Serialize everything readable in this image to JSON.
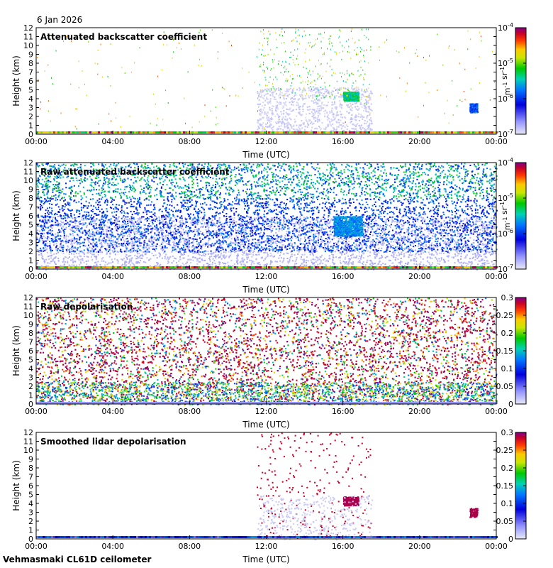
{
  "header": {
    "date": "6 Jan 2026"
  },
  "footer": {
    "site": "Vehmasmaki CL61D ceilometer"
  },
  "chart_data": [
    {
      "type": "heatmap",
      "title": "Attenuated backscatter coefficient",
      "xlabel": "Time (UTC)",
      "ylabel": "Height (km)",
      "x_ticks": [
        "00:00",
        "04:00",
        "08:00",
        "12:00",
        "16:00",
        "20:00",
        "00:00"
      ],
      "y_ticks": [
        0,
        1,
        2,
        3,
        4,
        5,
        6,
        7,
        8,
        9,
        10,
        11,
        12
      ],
      "ylim": [
        0,
        12
      ],
      "colorbar": {
        "scale": "log",
        "ticks": [
          "10-7",
          "10-6",
          "10-5",
          "10-4"
        ],
        "unit": "m-1 sr-1"
      },
      "features": [
        {
          "name": "surface layer",
          "time_range": [
            "00:00",
            "24:00"
          ],
          "height_km": [
            0,
            0.3
          ]
        },
        {
          "name": "cloud patch",
          "time_range": [
            "16:00",
            "16:50"
          ],
          "height_km": [
            3.8,
            4.8
          ]
        },
        {
          "name": "cloud patch",
          "time_range": [
            "22:40",
            "23:00"
          ],
          "height_km": [
            2.5,
            3.5
          ]
        },
        {
          "name": "thin upper returns",
          "time_range": [
            "11:30",
            "17:30"
          ],
          "height_km": [
            4,
            12
          ]
        }
      ]
    },
    {
      "type": "heatmap",
      "title": "Raw attenuated backscatter coefficient",
      "xlabel": "Time (UTC)",
      "ylabel": "Height (km)",
      "x_ticks": [
        "00:00",
        "04:00",
        "08:00",
        "12:00",
        "16:00",
        "20:00",
        "00:00"
      ],
      "y_ticks": [
        0,
        1,
        2,
        3,
        4,
        5,
        6,
        7,
        8,
        9,
        10,
        11,
        12
      ],
      "ylim": [
        0,
        12
      ],
      "colorbar": {
        "scale": "log",
        "ticks": [
          "10-7",
          "10-6",
          "10-5",
          "10-4"
        ],
        "unit": "m-1 sr-1"
      },
      "features": [
        {
          "name": "noisy background",
          "time_range": [
            "00:00",
            "24:00"
          ],
          "height_km": [
            0,
            12
          ]
        },
        {
          "name": "cloud patch",
          "time_range": [
            "15:30",
            "17:00"
          ],
          "height_km": [
            3.8,
            6
          ]
        }
      ]
    },
    {
      "type": "heatmap",
      "title": "Raw depolarisation",
      "xlabel": "Time (UTC)",
      "ylabel": "Height (km)",
      "x_ticks": [
        "00:00",
        "04:00",
        "08:00",
        "12:00",
        "16:00",
        "20:00",
        "00:00"
      ],
      "y_ticks": [
        0,
        1,
        2,
        3,
        4,
        5,
        6,
        7,
        8,
        9,
        10,
        11,
        12
      ],
      "ylim": [
        0,
        12
      ],
      "colorbar": {
        "scale": "linear",
        "ticks": [
          "0",
          "0.05",
          "0.1",
          "0.15",
          "0.2",
          "0.25",
          "0.3"
        ],
        "range": [
          0,
          0.3
        ]
      }
    },
    {
      "type": "heatmap",
      "title": "Smoothed lidar depolarisation",
      "xlabel": "Time (UTC)",
      "ylabel": "Height (km)",
      "x_ticks": [
        "00:00",
        "04:00",
        "08:00",
        "12:00",
        "16:00",
        "20:00",
        "00:00"
      ],
      "y_ticks": [
        0,
        1,
        2,
        3,
        4,
        5,
        6,
        7,
        8,
        9,
        10,
        11,
        12
      ],
      "ylim": [
        0,
        12
      ],
      "colorbar": {
        "scale": "linear",
        "ticks": [
          "0",
          "0.05",
          "0.1",
          "0.15",
          "0.2",
          "0.25",
          "0.3"
        ],
        "range": [
          0,
          0.3
        ]
      },
      "features": [
        {
          "name": "cloud patch",
          "time_range": [
            "16:00",
            "16:50"
          ],
          "height_km": [
            3.8,
            4.8
          ]
        },
        {
          "name": "cloud patch",
          "time_range": [
            "22:40",
            "23:00"
          ],
          "height_km": [
            2.5,
            3.5
          ]
        }
      ]
    }
  ]
}
